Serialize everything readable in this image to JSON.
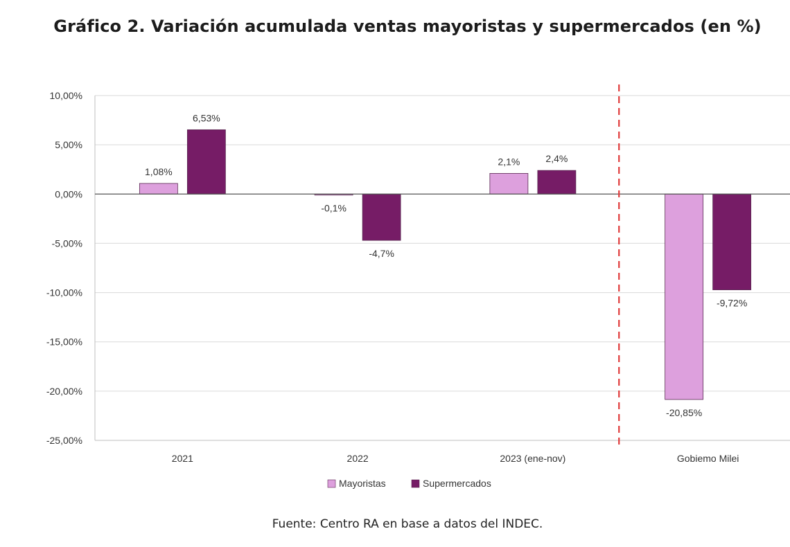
{
  "title": "Gráfico 2. Variación acumulada ventas mayoristas y supermercados (en %)",
  "source": "Fuente: Centro RA en base a datos del INDEC.",
  "chart_data": {
    "type": "bar",
    "categories": [
      "2021",
      "2022",
      "2023 (ene-nov)",
      "Gobiemo Milei"
    ],
    "series": [
      {
        "name": "Mayoristas",
        "color": "#dda0dd",
        "values": [
          1.08,
          -0.1,
          2.1,
          -20.85
        ],
        "labels": [
          "1,08%",
          "-0,1%",
          "2,1%",
          "-20,85%"
        ]
      },
      {
        "name": "Supermercados",
        "color": "#761c66",
        "values": [
          6.53,
          -4.7,
          2.4,
          -9.72
        ],
        "labels": [
          "6,53%",
          "-4,7%",
          "2,4%",
          "-9,72%"
        ]
      }
    ],
    "ylim": [
      -25,
      10
    ],
    "yticks": [
      10,
      5,
      0,
      -5,
      -10,
      -15,
      -20,
      -25
    ],
    "ytick_labels": [
      "10,00%",
      "5,00%",
      "0,00%",
      "-5,00%",
      "-10,00%",
      "-15,00%",
      "-20,00%",
      "-25,00%"
    ],
    "grid": true,
    "legend_position": "bottom",
    "separator_color": "#e03a3a",
    "separator_between_categories": [
      2,
      3
    ]
  }
}
